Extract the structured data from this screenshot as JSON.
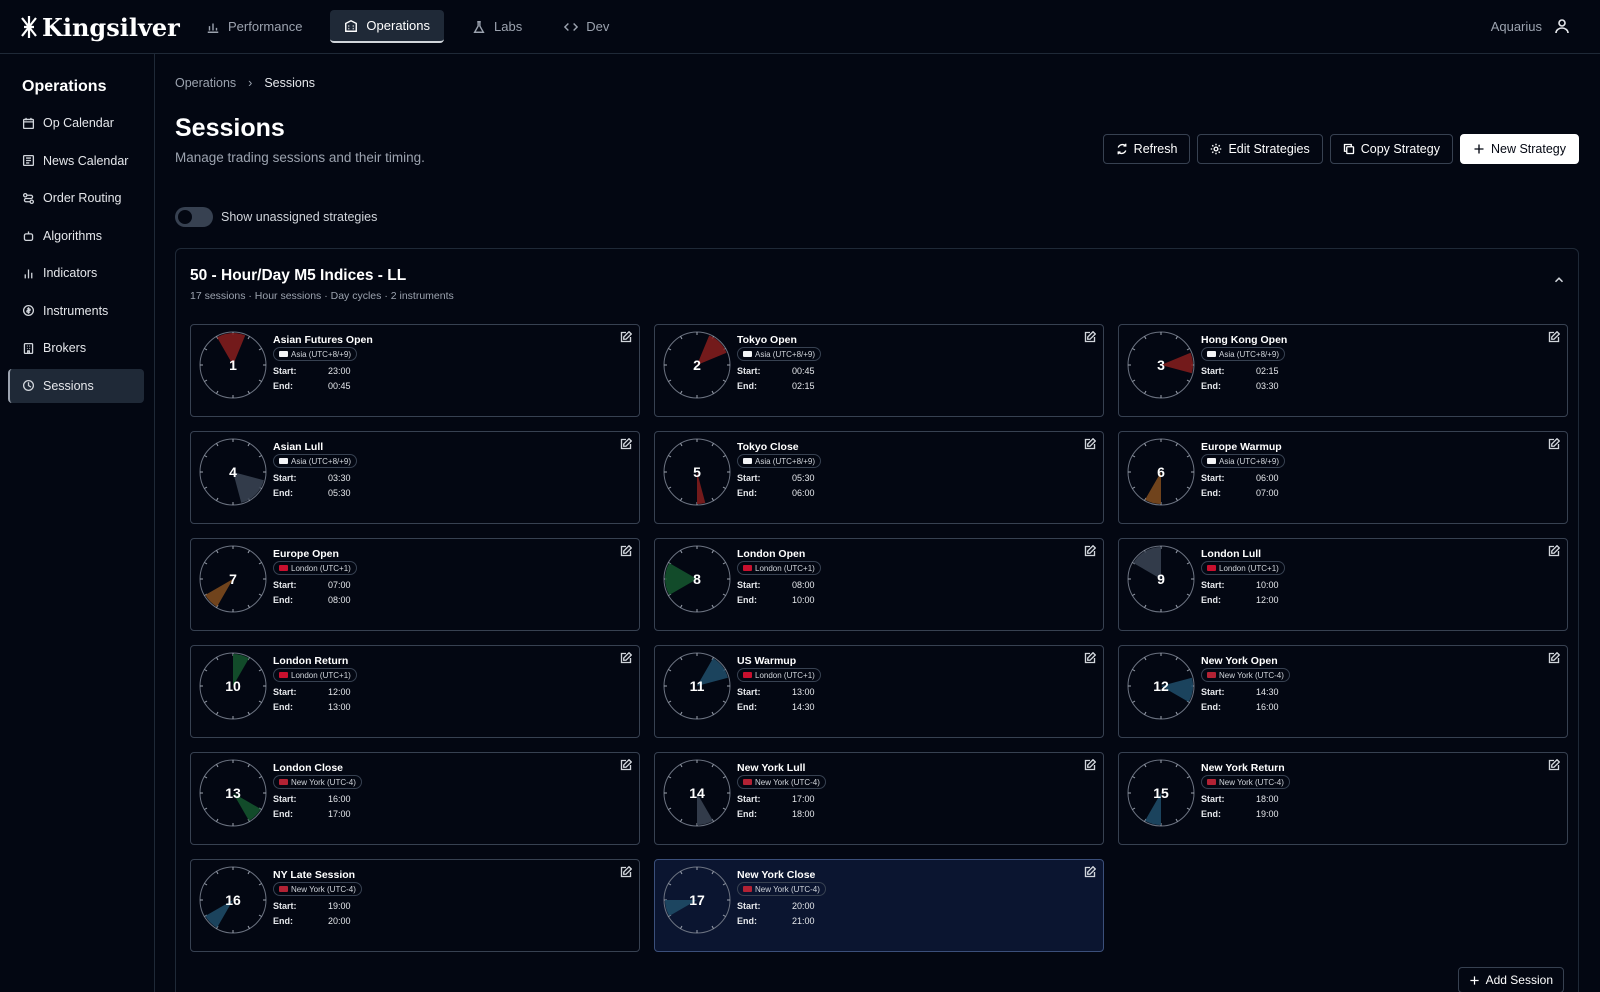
{
  "app": {
    "logo_text": "Kingsilver",
    "user_name": "Aquarius"
  },
  "nav": [
    {
      "label": "Performance",
      "icon": "chart-icon"
    },
    {
      "label": "Operations",
      "icon": "building-icon",
      "active": true
    },
    {
      "label": "Labs",
      "icon": "flask-icon"
    },
    {
      "label": "Dev",
      "icon": "code-icon"
    }
  ],
  "sidebar": {
    "title": "Operations",
    "items": [
      {
        "label": "Op Calendar",
        "icon": "calendar-icon"
      },
      {
        "label": "News Calendar",
        "icon": "newspaper-icon"
      },
      {
        "label": "Order Routing",
        "icon": "route-icon"
      },
      {
        "label": "Algorithms",
        "icon": "robot-icon"
      },
      {
        "label": "Indicators",
        "icon": "bar-chart-icon"
      },
      {
        "label": "Instruments",
        "icon": "coin-icon"
      },
      {
        "label": "Brokers",
        "icon": "building-icon"
      },
      {
        "label": "Sessions",
        "icon": "clock-icon",
        "active": true
      }
    ]
  },
  "breadcrumb": {
    "parent": "Operations",
    "current": "Sessions"
  },
  "page": {
    "title": "Sessions",
    "subtitle": "Manage trading sessions and their timing."
  },
  "actions": {
    "refresh": "Refresh",
    "edit_strategies": "Edit Strategies",
    "copy_strategy": "Copy Strategy",
    "new_strategy": "New Strategy"
  },
  "toggle": {
    "label": "Show unassigned strategies",
    "on": false
  },
  "strategy": {
    "title": "50 - Hour/Day M5 Indices - LL",
    "meta": "17 sessions · Hour sessions · Day cycles · 2 instruments",
    "add_session": "Add Session",
    "labels": {
      "start": "Start:",
      "end": "End:"
    },
    "sessions": [
      {
        "num": "1",
        "name": "Asian Futures Open",
        "tz": "Asia (UTC+8/+9)",
        "flag": "jp",
        "start": "23:00",
        "end": "00:45",
        "color": "#7f1d1d"
      },
      {
        "num": "2",
        "name": "Tokyo Open",
        "tz": "Asia (UTC+8/+9)",
        "flag": "jp",
        "start": "00:45",
        "end": "02:15",
        "color": "#7f1d1d"
      },
      {
        "num": "3",
        "name": "Hong Kong Open",
        "tz": "Asia (UTC+8/+9)",
        "flag": "jp",
        "start": "02:15",
        "end": "03:30",
        "color": "#7f1d1d"
      },
      {
        "num": "4",
        "name": "Asian Lull",
        "tz": "Asia (UTC+8/+9)",
        "flag": "jp",
        "start": "03:30",
        "end": "05:30",
        "color": "#374151"
      },
      {
        "num": "5",
        "name": "Tokyo Close",
        "tz": "Asia (UTC+8/+9)",
        "flag": "jp",
        "start": "05:30",
        "end": "06:00",
        "color": "#7f1d1d"
      },
      {
        "num": "6",
        "name": "Europe Warmup",
        "tz": "Asia (UTC+8/+9)",
        "flag": "jp",
        "start": "06:00",
        "end": "07:00",
        "color": "#7c4a1e"
      },
      {
        "num": "7",
        "name": "Europe Open",
        "tz": "London (UTC+1)",
        "flag": "uk",
        "start": "07:00",
        "end": "08:00",
        "color": "#7c4a1e"
      },
      {
        "num": "8",
        "name": "London Open",
        "tz": "London (UTC+1)",
        "flag": "uk",
        "start": "08:00",
        "end": "10:00",
        "color": "#14532d"
      },
      {
        "num": "9",
        "name": "London Lull",
        "tz": "London (UTC+1)",
        "flag": "uk",
        "start": "10:00",
        "end": "12:00",
        "color": "#374151"
      },
      {
        "num": "10",
        "name": "London Return",
        "tz": "London (UTC+1)",
        "flag": "uk",
        "start": "12:00",
        "end": "13:00",
        "color": "#14532d"
      },
      {
        "num": "11",
        "name": "US Warmup",
        "tz": "London (UTC+1)",
        "flag": "uk",
        "start": "13:00",
        "end": "14:30",
        "color": "#1e4a66"
      },
      {
        "num": "12",
        "name": "New York Open",
        "tz": "New York (UTC-4)",
        "flag": "us",
        "start": "14:30",
        "end": "16:00",
        "color": "#1e4a66"
      },
      {
        "num": "13",
        "name": "London Close",
        "tz": "New York (UTC-4)",
        "flag": "us",
        "start": "16:00",
        "end": "17:00",
        "color": "#14532d"
      },
      {
        "num": "14",
        "name": "New York Lull",
        "tz": "New York (UTC-4)",
        "flag": "us",
        "start": "17:00",
        "end": "18:00",
        "color": "#374151"
      },
      {
        "num": "15",
        "name": "New York Return",
        "tz": "New York (UTC-4)",
        "flag": "us",
        "start": "18:00",
        "end": "19:00",
        "color": "#1e4a66"
      },
      {
        "num": "16",
        "name": "NY Late Session",
        "tz": "New York (UTC-4)",
        "flag": "us",
        "start": "19:00",
        "end": "20:00",
        "color": "#1e4a66"
      },
      {
        "num": "17",
        "name": "New York Close",
        "tz": "New York (UTC-4)",
        "flag": "us",
        "start": "20:00",
        "end": "21:00",
        "color": "#1e4a66",
        "selected": true
      }
    ]
  }
}
